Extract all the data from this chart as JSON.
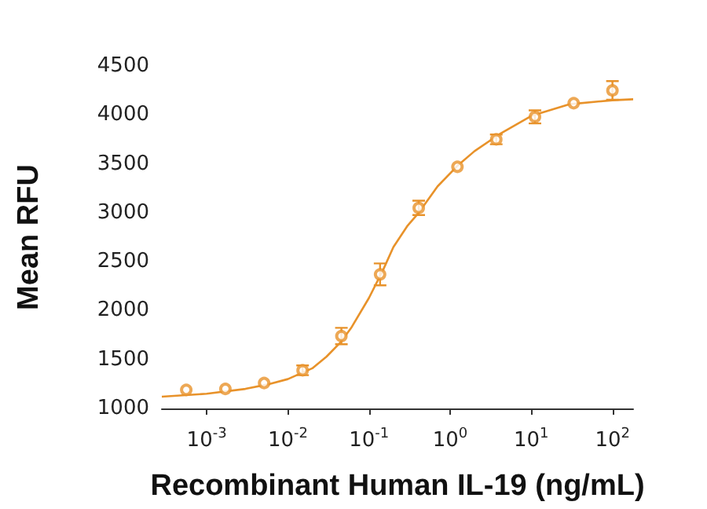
{
  "chart_data": {
    "type": "scatter",
    "xlabel": "Recombinant Human IL-19 (ng/mL)",
    "ylabel": "Mean RFU",
    "log": "x",
    "marker": "circle",
    "grid": false,
    "xlim": [
      0.00028,
      180
    ],
    "xticks": [
      {
        "value": 0.001,
        "label": "10$^{-3}$"
      },
      {
        "value": 0.01,
        "label": "10$^{-2}$"
      },
      {
        "value": 0.1,
        "label": "10$^{-1}$"
      },
      {
        "value": 1,
        "label": "10$^{0}$"
      },
      {
        "value": 10,
        "label": "10$^{1}$"
      },
      {
        "value": 100,
        "label": "10$^{2}$"
      }
    ],
    "ylim": [
      1000,
      4500
    ],
    "yticks": [
      1000,
      1500,
      2000,
      2500,
      3000,
      3500,
      4000,
      4500
    ],
    "series": [
      {
        "color": "#e8922a",
        "x": [
          0.00056,
          0.0017,
          0.0051,
          0.0152,
          0.0457,
          0.137,
          0.41,
          1.23,
          3.7,
          11.1,
          33.3,
          100
        ],
        "values": [
          1190,
          1200,
          1260,
          1390,
          1740,
          2370,
          3050,
          3470,
          3750,
          3980,
          4120,
          4250
        ],
        "errors": [
          null,
          null,
          null,
          50,
          84,
          112,
          73,
          null,
          50,
          67,
          null,
          95
        ]
      },
      {
        "type": "line",
        "color": "#e8922a",
        "marker": "none",
        "x": [
          0.00028,
          0.001,
          0.003,
          0.006,
          0.01,
          0.02,
          0.03,
          0.045,
          0.06,
          0.1,
          0.15,
          0.2,
          0.3,
          0.41,
          0.7,
          1.23,
          2,
          4,
          10,
          30,
          100,
          180
        ],
        "values": [
          1120,
          1150,
          1200,
          1250,
          1300,
          1410,
          1530,
          1680,
          1820,
          2130,
          2420,
          2650,
          2870,
          3000,
          3270,
          3480,
          3630,
          3800,
          3990,
          4110,
          4150,
          4160
        ]
      }
    ]
  }
}
